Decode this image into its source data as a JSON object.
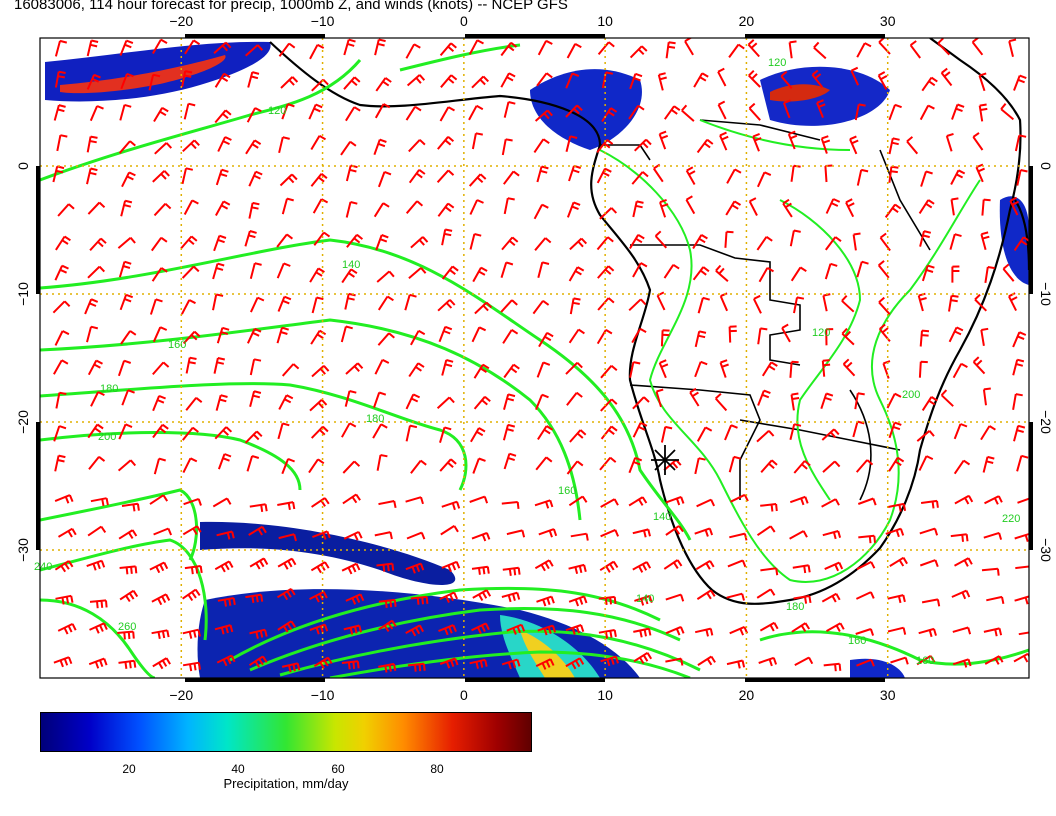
{
  "title": "16083006, 114 hour forecast for precip, 1000mb Z, and winds (knots) -- NCEP GFS",
  "map": {
    "lon_range": [
      -30,
      40
    ],
    "lat_range": [
      -40,
      10
    ],
    "grid_lines": "dotted",
    "grid_color": "#e0b000",
    "lon_ticks": [
      -20,
      -10,
      0,
      10,
      20,
      30
    ],
    "lat_ticks": [
      0,
      -10,
      -20,
      -30
    ],
    "lon_tick_labels": [
      "−20",
      "−10",
      "0",
      "10",
      "20",
      "30"
    ],
    "lat_tick_labels": [
      "0",
      "−10",
      "−20",
      "−30"
    ],
    "coastline_color": "#000000",
    "contour_color": "#22ee22",
    "wind_barb_color": "#ff0000",
    "marker": {
      "type": "asterisk",
      "lon": 14.5,
      "lat": -23
    }
  },
  "contours": [
    {
      "label": "120",
      "value": 120
    },
    {
      "label": "140",
      "value": 140
    },
    {
      "label": "160",
      "value": 160
    },
    {
      "label": "180",
      "value": 180
    },
    {
      "label": "200",
      "value": 200
    },
    {
      "label": "220",
      "value": 220
    },
    {
      "label": "240",
      "value": 240
    },
    {
      "label": "260",
      "value": 260
    }
  ],
  "colorbar": {
    "label": "Precipitation, mm/day",
    "ticks": [
      "20",
      "40",
      "60",
      "80"
    ],
    "tick_values": [
      20,
      40,
      60,
      80
    ],
    "range": [
      0,
      100
    ]
  }
}
